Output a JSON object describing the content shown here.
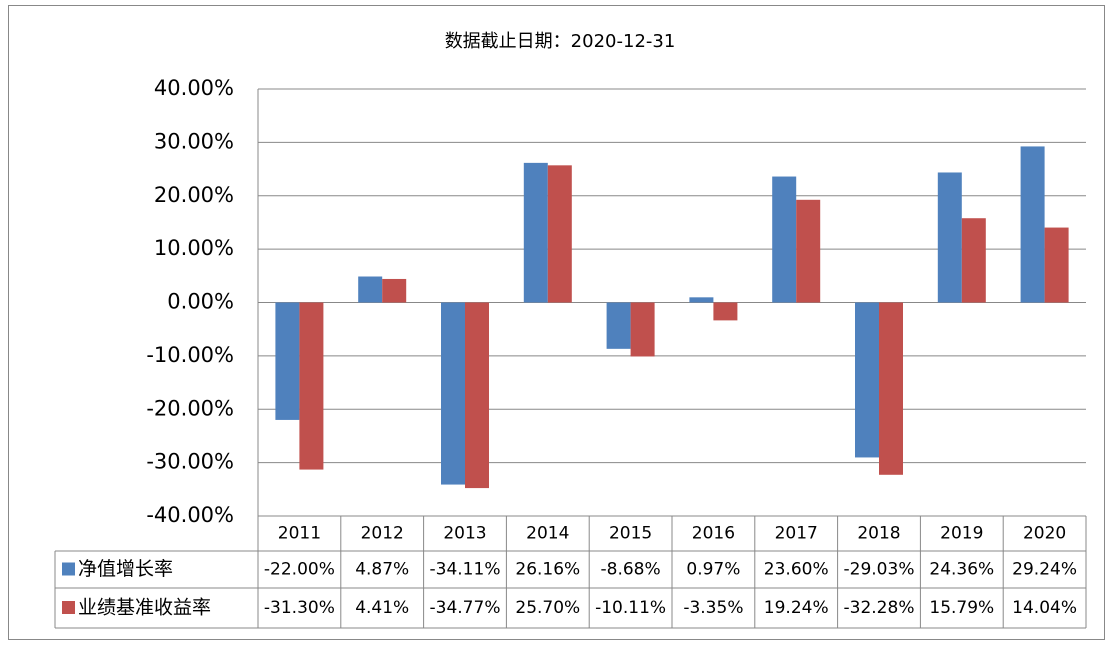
{
  "chart_data": {
    "type": "bar",
    "title": "数据截止日期：2020-12-31",
    "categories": [
      "2011",
      "2012",
      "2013",
      "2014",
      "2015",
      "2016",
      "2017",
      "2018",
      "2019",
      "2020"
    ],
    "series": [
      {
        "name": "净值增长率",
        "color": "#4f81bd",
        "values": [
          -22.0,
          4.87,
          -34.11,
          26.16,
          -8.68,
          0.97,
          23.6,
          -29.03,
          24.36,
          29.24
        ],
        "value_labels": [
          "-22.00%",
          "4.87%",
          "-34.11%",
          "26.16%",
          "-8.68%",
          "0.97%",
          "23.60%",
          "-29.03%",
          "24.36%",
          "29.24%"
        ]
      },
      {
        "name": "业绩基准收益率",
        "color": "#c0504d",
        "values": [
          -31.3,
          4.41,
          -34.77,
          25.7,
          -10.11,
          -3.35,
          19.24,
          -32.28,
          15.79,
          14.04
        ],
        "value_labels": [
          "-31.30%",
          "4.41%",
          "-34.77%",
          "25.70%",
          "-10.11%",
          "-3.35%",
          "19.24%",
          "-32.28%",
          "15.79%",
          "14.04%"
        ]
      }
    ],
    "ylim": [
      -40,
      40
    ],
    "yticks": [
      {
        "value": -40,
        "label": "-40.00%"
      },
      {
        "value": -30,
        "label": "-30.00%"
      },
      {
        "value": -20,
        "label": "-20.00%"
      },
      {
        "value": -10,
        "label": "-10.00%"
      },
      {
        "value": 0,
        "label": "0.00%"
      },
      {
        "value": 10,
        "label": "10.00%"
      },
      {
        "value": 20,
        "label": "20.00%"
      },
      {
        "value": 30,
        "label": "30.00%"
      },
      {
        "value": 40,
        "label": "40.00%"
      }
    ],
    "grid": true
  }
}
